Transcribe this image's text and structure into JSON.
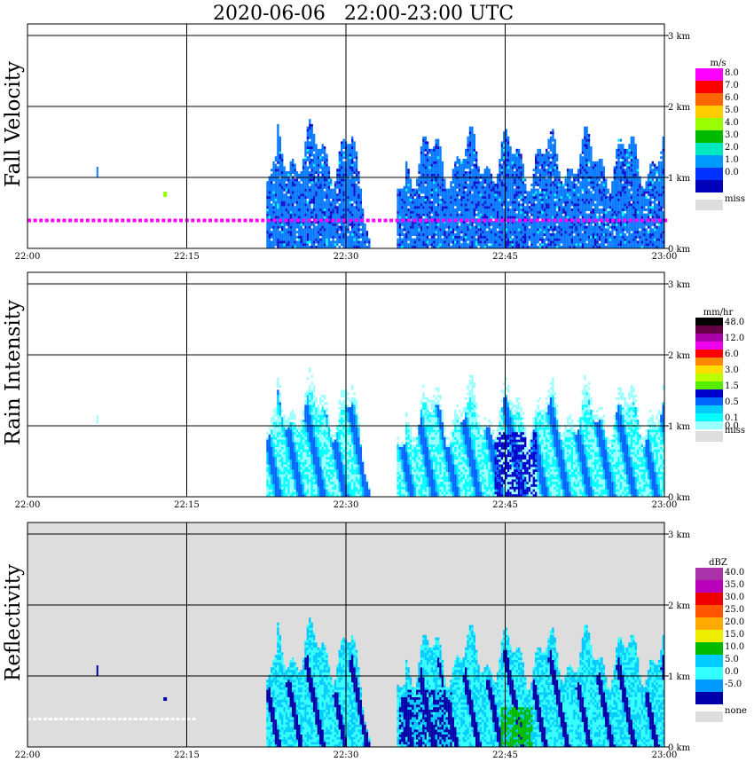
{
  "chart_data": {
    "type": "heatmap",
    "title": "2020-06-06   22:00-23:00 UTC",
    "x_ticks": [
      "22:00",
      "22:15",
      "22:30",
      "22:45",
      "23:00"
    ],
    "y_ticks": [
      "0 km",
      "1 km",
      "2 km",
      "3 km"
    ],
    "xlim": [
      0,
      60
    ],
    "ylim": [
      0,
      3
    ],
    "panels": [
      {
        "name": "fall-velocity",
        "ylabel": "Fall Velocity",
        "unit": "m/s",
        "miss_label": "miss",
        "colorbar": [
          {
            "label": "8.0",
            "color": "#ff00ff"
          },
          {
            "label": "7.0",
            "color": "#ff0000"
          },
          {
            "label": "6.0",
            "color": "#ff6600"
          },
          {
            "label": "5.0",
            "color": "#ffcc00"
          },
          {
            "label": "4.0",
            "color": "#99ff00"
          },
          {
            "label": "3.0",
            "color": "#00bb00"
          },
          {
            "label": "2.0",
            "color": "#00e8c0"
          },
          {
            "label": "1.0",
            "color": "#0099ff"
          },
          {
            "label": "0.0",
            "color": "#0033ff"
          },
          {
            "label": "",
            "color": "#0000bb"
          }
        ]
      },
      {
        "name": "rain-intensity",
        "ylabel": "Rain Intensity",
        "unit": "mm/hr",
        "miss_label": "miss",
        "colorbar": [
          {
            "label": "48.0",
            "color": "#000000"
          },
          {
            "label": "",
            "color": "#660044"
          },
          {
            "label": "12.0",
            "color": "#aa00aa"
          },
          {
            "label": "",
            "color": "#ee00ee"
          },
          {
            "label": "6.0",
            "color": "#ff0000"
          },
          {
            "label": "",
            "color": "#ff8800"
          },
          {
            "label": "3.0",
            "color": "#ffdd00"
          },
          {
            "label": "",
            "color": "#bbff00"
          },
          {
            "label": "1.5",
            "color": "#55ee00"
          },
          {
            "label": "",
            "color": "#0000cc"
          },
          {
            "label": "0.5",
            "color": "#0066ff"
          },
          {
            "label": "",
            "color": "#00ccff"
          },
          {
            "label": "0.1",
            "color": "#00ffff"
          },
          {
            "label": "0.0",
            "color": "#99ffff"
          }
        ]
      },
      {
        "name": "reflectivity",
        "ylabel": "Reflectivity",
        "unit": "dBZ",
        "miss_label": "none",
        "colorbar": [
          {
            "label": "40.0",
            "color": "#aa33aa"
          },
          {
            "label": "35.0",
            "color": "#bb00bb"
          },
          {
            "label": "30.0",
            "color": "#ee0000"
          },
          {
            "label": "25.0",
            "color": "#ff5500"
          },
          {
            "label": "20.0",
            "color": "#ffaa00"
          },
          {
            "label": "15.0",
            "color": "#eeee00"
          },
          {
            "label": "10.0",
            "color": "#00bb00"
          },
          {
            "label": "5.0",
            "color": "#00ccff"
          },
          {
            "label": "0.0",
            "color": "#33ffff"
          },
          {
            "label": "-5.0",
            "color": "#0099ff"
          },
          {
            "label": "",
            "color": "#0000aa"
          }
        ]
      }
    ]
  },
  "colors": {
    "miss": "#dddddd",
    "fv_main": "#0a7bff",
    "fv_dark": "#1010cc",
    "fv_line": "#ff00ff",
    "ri_light": "#99ffff",
    "ri_cyan": "#00ffff",
    "ri_mid": "#00ccff",
    "ri_dark": "#0066ff",
    "ri_deep": "#0000cc",
    "rf_bg": "#dddddd",
    "rf_dark": "#0000aa",
    "rf_light": "#33ffff",
    "rf_sky": "#00ccff",
    "rf_green": "#00bb00"
  }
}
